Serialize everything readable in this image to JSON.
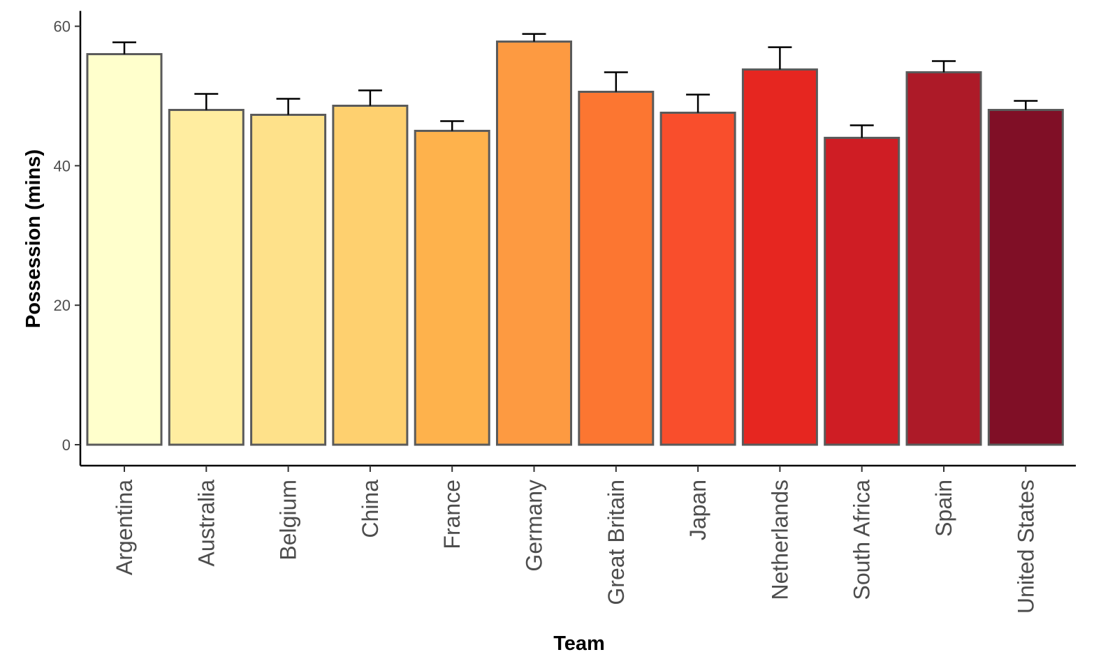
{
  "chart_data": {
    "type": "bar",
    "title": "",
    "xlabel": "Team",
    "ylabel": "Possession (mins)",
    "ylim": [
      -3,
      62
    ],
    "yticks": [
      0,
      20,
      40,
      60
    ],
    "grid": false,
    "legend": "none",
    "categories": [
      "Argentina",
      "Australia",
      "Belgium",
      "China",
      "France",
      "Germany",
      "Great Britain",
      "Japan",
      "Netherlands",
      "South Africa",
      "Spain",
      "United States"
    ],
    "values": [
      56.0,
      48.0,
      47.3,
      48.6,
      45.0,
      57.8,
      50.6,
      47.6,
      53.8,
      44.0,
      53.4,
      48.0
    ],
    "error_upper": [
      57.7,
      50.3,
      49.6,
      50.8,
      46.4,
      58.9,
      53.4,
      50.2,
      57.0,
      45.8,
      55.0,
      49.3
    ],
    "colors": [
      "#FFFFCC",
      "#FFEDA0",
      "#FEE18A",
      "#FED06F",
      "#FEB24C",
      "#FD9A41",
      "#FC7631",
      "#F94E2C",
      "#E62620",
      "#CF1D24",
      "#AD1A28",
      "#800F26"
    ],
    "bar_border_color": "#5a5a5a"
  }
}
